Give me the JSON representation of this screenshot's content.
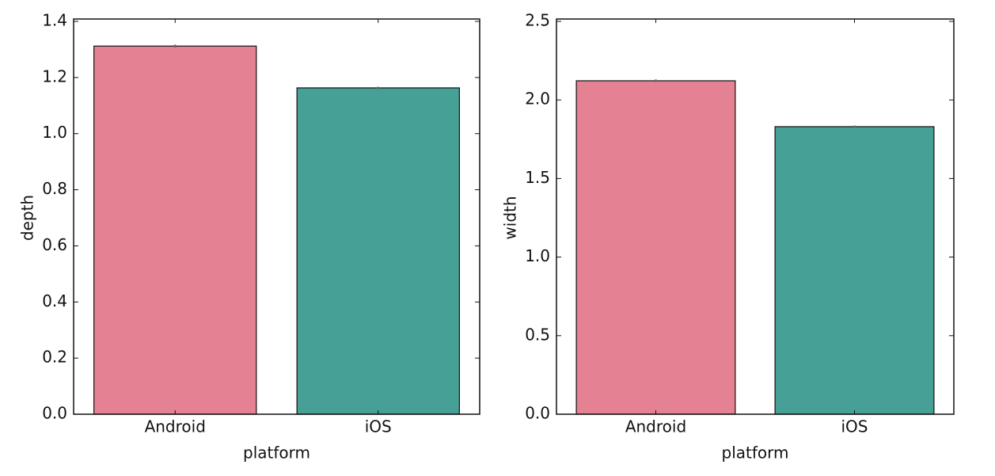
{
  "chart_data": [
    {
      "type": "bar",
      "xlabel": "platform",
      "ylabel": "depth",
      "categories": [
        "Android",
        "iOS"
      ],
      "values": [
        1.312,
        1.163
      ],
      "errors": [
        0.005,
        0.004
      ],
      "colors": [
        "#e48293",
        "#46a096"
      ],
      "error_color": "#666666",
      "ylim": [
        0,
        1.4
      ],
      "yticks": [
        {
          "value": 0,
          "label": "0.0"
        },
        {
          "value": 0.2,
          "label": "0.2"
        },
        {
          "value": 0.4,
          "label": "0.4"
        },
        {
          "value": 0.6,
          "label": "0.6"
        },
        {
          "value": 0.8,
          "label": "0.8"
        },
        {
          "value": 1,
          "label": "1.0"
        },
        {
          "value": 1.2,
          "label": "1.2"
        },
        {
          "value": 1.4,
          "label": "1.4"
        }
      ]
    },
    {
      "type": "bar",
      "xlabel": "platform",
      "ylabel": "width",
      "categories": [
        "Android",
        "iOS"
      ],
      "values": [
        2.122,
        1.83
      ],
      "errors": [
        0.008,
        0.007
      ],
      "colors": [
        "#e48293",
        "#46a096"
      ],
      "error_color": "#666666",
      "ylim": [
        0,
        2.5
      ],
      "yticks": [
        {
          "value": 0,
          "label": "0.0"
        },
        {
          "value": 0.5,
          "label": "0.5"
        },
        {
          "value": 1,
          "label": "1.0"
        },
        {
          "value": 1.5,
          "label": "1.5"
        },
        {
          "value": 2,
          "label": "2.0"
        },
        {
          "value": 2.5,
          "label": "2.5"
        }
      ]
    }
  ]
}
